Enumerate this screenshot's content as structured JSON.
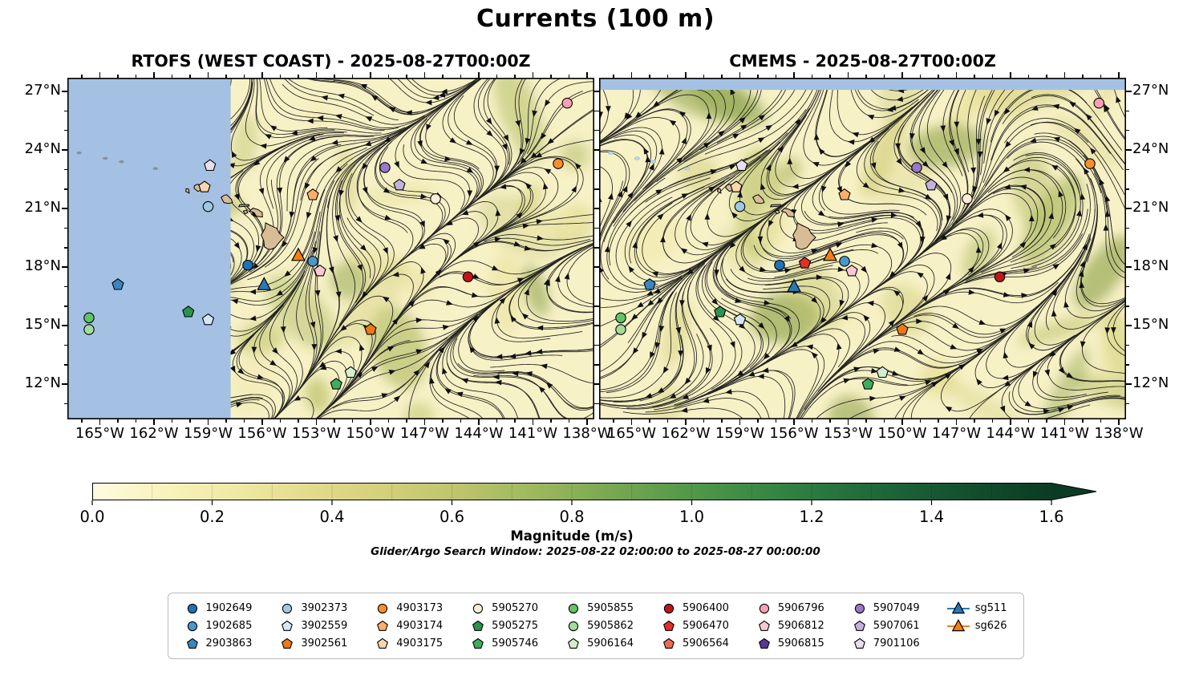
{
  "figure": {
    "title": "Currents (100 m)",
    "subtitle": "Glider/Argo Search Window: 2025-08-22 02:00:00 to 2025-08-27 00:00:00"
  },
  "chart_data": {
    "type": "streamplot-map-comparison",
    "variable": "Ocean current magnitude at 100 m depth",
    "lon_range": [
      -166.8,
      -137.6
    ],
    "lat_range": [
      10.2,
      27.7
    ],
    "x_ticks": [
      {
        "label": "165°W",
        "lon": -165
      },
      {
        "label": "162°W",
        "lon": -162
      },
      {
        "label": "159°W",
        "lon": -159
      },
      {
        "label": "156°W",
        "lon": -156
      },
      {
        "label": "153°W",
        "lon": -153
      },
      {
        "label": "150°W",
        "lon": -150
      },
      {
        "label": "147°W",
        "lon": -147
      },
      {
        "label": "144°W",
        "lon": -144
      },
      {
        "label": "141°W",
        "lon": -141
      },
      {
        "label": "138°W",
        "lon": -138
      }
    ],
    "y_ticks": [
      {
        "label": "27°N",
        "lat": 27
      },
      {
        "label": "24°N",
        "lat": 24
      },
      {
        "label": "21°N",
        "lat": 21
      },
      {
        "label": "18°N",
        "lat": 18
      },
      {
        "label": "15°N",
        "lat": 15
      },
      {
        "label": "12°N",
        "lat": 12
      }
    ],
    "colorbar": {
      "label": "Magnitude (m/s)",
      "ticks": [
        "0.0",
        "0.2",
        "0.4",
        "0.6",
        "0.8",
        "1.0",
        "1.2",
        "1.4",
        "1.6"
      ],
      "range": [
        0,
        1.6
      ],
      "extend": "max",
      "stops": [
        "#fffbe0",
        "#f9f2bc",
        "#efe8a2",
        "#e3da8b",
        "#d3cf7a",
        "#bcc46c",
        "#9db85e",
        "#79a852",
        "#559a49",
        "#3a8a45",
        "#28753f",
        "#1b6137",
        "#114d2d",
        "#0b3b24"
      ]
    },
    "map": {
      "ocean_color": "#f7f1c6",
      "land_color": "#d8bc96",
      "no_data_color": "#a4c1e4",
      "streamline_color": "#101010",
      "field_shades": [
        "#f2eab0",
        "#e6de95",
        "#d4d080",
        "#bdc36c",
        "#aab85f",
        "#97a955"
      ]
    },
    "legend": {
      "entries": [
        {
          "id": "1902649",
          "shape": "circle",
          "color": "#2171b5"
        },
        {
          "id": "1902685",
          "shape": "circle",
          "color": "#4a98ca"
        },
        {
          "id": "2903863",
          "shape": "pentagon",
          "color": "#3987c0"
        },
        {
          "id": "3902373",
          "shape": "circle",
          "color": "#9ecae1"
        },
        {
          "id": "3902559",
          "shape": "pentagon",
          "color": "#d4e8f4"
        },
        {
          "id": "3902561",
          "shape": "pentagon",
          "color": "#ef7816"
        },
        {
          "id": "4903173",
          "shape": "circle",
          "color": "#f78f2e"
        },
        {
          "id": "4903174",
          "shape": "pentagon",
          "color": "#fdae6b"
        },
        {
          "id": "4903175",
          "shape": "pentagon",
          "color": "#fdd6ac"
        },
        {
          "id": "5905270",
          "shape": "circle",
          "color": "#feeed8"
        },
        {
          "id": "5905275",
          "shape": "pentagon",
          "color": "#2c944c"
        },
        {
          "id": "5905746",
          "shape": "pentagon",
          "color": "#3fae5c"
        },
        {
          "id": "5905855",
          "shape": "circle",
          "color": "#62c368"
        },
        {
          "id": "5905862",
          "shape": "circle",
          "color": "#a5dc9e"
        },
        {
          "id": "5906164",
          "shape": "pentagon",
          "color": "#d3efcd"
        },
        {
          "id": "5906400",
          "shape": "circle",
          "color": "#c0151b"
        },
        {
          "id": "5906470",
          "shape": "pentagon",
          "color": "#e03127"
        },
        {
          "id": "5906564",
          "shape": "pentagon",
          "color": "#ef6a54"
        },
        {
          "id": "5906796",
          "shape": "circle",
          "color": "#fa9fb5"
        },
        {
          "id": "5906812",
          "shape": "pentagon",
          "color": "#fcc8d4"
        },
        {
          "id": "5906815",
          "shape": "pentagon",
          "color": "#5b3794"
        },
        {
          "id": "5907049",
          "shape": "circle",
          "color": "#9878c8"
        },
        {
          "id": "5907061",
          "shape": "pentagon",
          "color": "#c2b2dc"
        },
        {
          "id": "7901106",
          "shape": "pentagon",
          "color": "#e7def0"
        },
        {
          "id": "sg511",
          "shape": "triangle",
          "color": "#2779b5",
          "track": true
        },
        {
          "id": "sg626",
          "shape": "triangle",
          "color": "#f57f17",
          "track": true
        }
      ]
    },
    "panels": [
      {
        "title": "RTOFS (WEST COAST) - 2025-08-27T00:00Z",
        "no_data": {
          "side": "west",
          "lon_max": -157.75
        },
        "markers": [
          {
            "id": "5906796",
            "lon": -139.1,
            "lat": 26.4
          },
          {
            "id": "4903173",
            "lon": -139.6,
            "lat": 23.3
          },
          {
            "id": "7901106",
            "lon": -158.9,
            "lat": 23.2
          },
          {
            "id": "5907049",
            "lon": -149.2,
            "lat": 23.1
          },
          {
            "id": "5907061",
            "lon": -148.4,
            "lat": 22.2
          },
          {
            "id": "4903175",
            "lon": -159.2,
            "lat": 22.1
          },
          {
            "id": "4903174",
            "lon": -153.2,
            "lat": 21.7
          },
          {
            "id": "5905270",
            "lon": -146.4,
            "lat": 21.5
          },
          {
            "id": "3902373",
            "lon": -159.0,
            "lat": 21.1
          },
          {
            "id": "1902649",
            "lon": -156.8,
            "lat": 18.1
          },
          {
            "id": "sg626",
            "lon": -154.0,
            "lat": 18.6
          },
          {
            "id": "1902685",
            "lon": -153.2,
            "lat": 18.3
          },
          {
            "id": "5906812",
            "lon": -152.8,
            "lat": 17.8
          },
          {
            "id": "sg511",
            "lon": -155.9,
            "lat": 17.1
          },
          {
            "id": "2903863",
            "lon": -164.0,
            "lat": 17.1
          },
          {
            "id": "5906400",
            "lon": -144.6,
            "lat": 17.5
          },
          {
            "id": "5905275",
            "lon": -160.1,
            "lat": 15.7
          },
          {
            "id": "3902559",
            "lon": -159.0,
            "lat": 15.3
          },
          {
            "id": "5905855",
            "lon": -165.6,
            "lat": 15.4
          },
          {
            "id": "5905862",
            "lon": -165.6,
            "lat": 14.8
          },
          {
            "id": "3902561",
            "lon": -150.0,
            "lat": 14.8
          },
          {
            "id": "5906164",
            "lon": -151.1,
            "lat": 12.6
          },
          {
            "id": "5905746",
            "lon": -151.9,
            "lat": 12.0
          }
        ]
      },
      {
        "title": "CMEMS - 2025-08-27T00:00Z",
        "no_data": {
          "side": "north",
          "lat_min": 27.08
        },
        "markers": [
          {
            "id": "5906796",
            "lon": -139.1,
            "lat": 26.4
          },
          {
            "id": "4903173",
            "lon": -139.6,
            "lat": 23.3
          },
          {
            "id": "7901106",
            "lon": -158.9,
            "lat": 23.2
          },
          {
            "id": "5907049",
            "lon": -149.2,
            "lat": 23.1
          },
          {
            "id": "5907061",
            "lon": -148.4,
            "lat": 22.2
          },
          {
            "id": "4903175",
            "lon": -159.2,
            "lat": 22.1
          },
          {
            "id": "4903174",
            "lon": -153.2,
            "lat": 21.7
          },
          {
            "id": "5905270",
            "lon": -146.4,
            "lat": 21.5
          },
          {
            "id": "3902373",
            "lon": -159.0,
            "lat": 21.1
          },
          {
            "id": "1902649",
            "lon": -156.8,
            "lat": 18.1
          },
          {
            "id": "5906470",
            "lon": -155.4,
            "lat": 18.2
          },
          {
            "id": "sg626",
            "lon": -154.0,
            "lat": 18.6
          },
          {
            "id": "1902685",
            "lon": -153.2,
            "lat": 18.3
          },
          {
            "id": "5906812",
            "lon": -152.8,
            "lat": 17.8
          },
          {
            "id": "sg511",
            "lon": -156.0,
            "lat": 17.0
          },
          {
            "id": "2903863",
            "lon": -164.0,
            "lat": 17.1
          },
          {
            "id": "5906400",
            "lon": -144.6,
            "lat": 17.5
          },
          {
            "id": "5905275",
            "lon": -160.1,
            "lat": 15.7
          },
          {
            "id": "3902559",
            "lon": -159.0,
            "lat": 15.3
          },
          {
            "id": "5905855",
            "lon": -165.6,
            "lat": 15.4
          },
          {
            "id": "5905862",
            "lon": -165.6,
            "lat": 14.8
          },
          {
            "id": "3902561",
            "lon": -150.0,
            "lat": 14.8
          },
          {
            "id": "5906164",
            "lon": -151.1,
            "lat": 12.6
          },
          {
            "id": "5905746",
            "lon": -151.9,
            "lat": 12.0
          }
        ]
      }
    ]
  }
}
